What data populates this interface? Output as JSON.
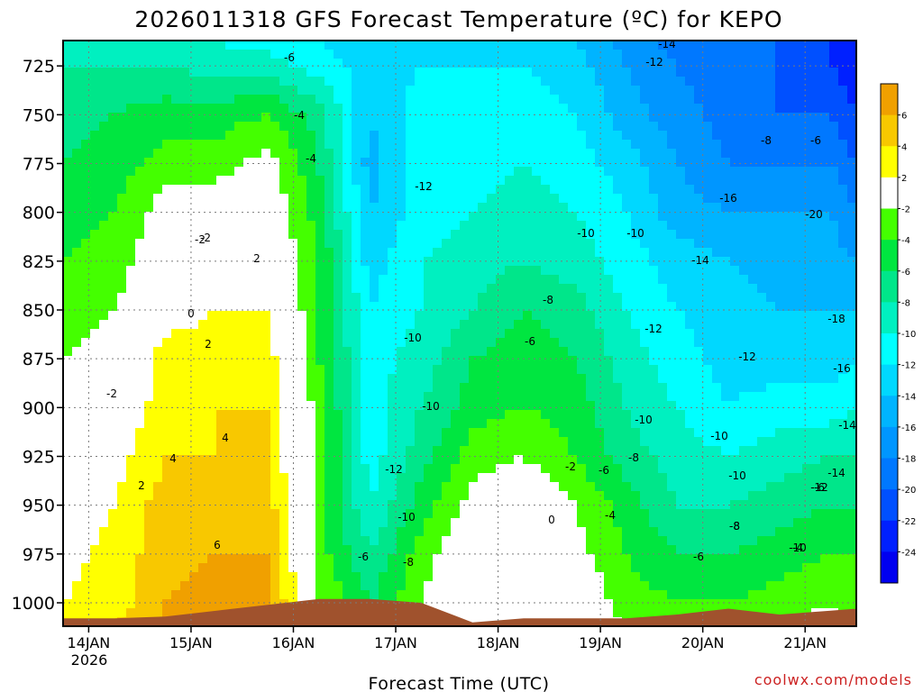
{
  "chart_data": {
    "type": "heatmap",
    "title": "2026011318 GFS Forecast Temperature (ºC) for KEPO",
    "xlabel": "Forecast Time (UTC)",
    "ylabel": "",
    "watermark": "coolwx.com/models",
    "x_axis": {
      "ticks": [
        "14JAN",
        "15JAN",
        "16JAN",
        "17JAN",
        "18JAN",
        "19JAN",
        "20JAN",
        "21JAN"
      ],
      "year_label": "2026",
      "range": [
        "2026-01-13 18Z",
        "2026-01-21 12Z"
      ]
    },
    "y_axis": {
      "units": "hPa",
      "ticks": [
        725,
        750,
        775,
        800,
        825,
        850,
        875,
        900,
        925,
        950,
        975,
        1000
      ],
      "range": [
        1012,
        712
      ],
      "inverted": true
    },
    "grid": true,
    "legend": {
      "placement": "right",
      "labels": [
        "6",
        "4",
        "2",
        "-2",
        "-4",
        "-6",
        "-8",
        "-10",
        "-12",
        "-14",
        "-16",
        "-18",
        "-20",
        "-22",
        "-24"
      ],
      "bins": [
        {
          "range": [
            6,
            8
          ],
          "color": "#f0a000"
        },
        {
          "range": [
            4,
            6
          ],
          "color": "#f8c800"
        },
        {
          "range": [
            2,
            4
          ],
          "color": "#ffff00"
        },
        {
          "range": [
            -2,
            2
          ],
          "color": "#ffffff"
        },
        {
          "range": [
            -4,
            -2
          ],
          "color": "#44ff00"
        },
        {
          "range": [
            -6,
            -4
          ],
          "color": "#00e640"
        },
        {
          "range": [
            -8,
            -6
          ],
          "color": "#00e68a"
        },
        {
          "range": [
            -10,
            -8
          ],
          "color": "#00f0c0"
        },
        {
          "range": [
            -12,
            -10
          ],
          "color": "#00ffff"
        },
        {
          "range": [
            -14,
            -12
          ],
          "color": "#00d8ff"
        },
        {
          "range": [
            -16,
            -14
          ],
          "color": "#00b4ff"
        },
        {
          "range": [
            -18,
            -16
          ],
          "color": "#0096ff"
        },
        {
          "range": [
            -20,
            -18
          ],
          "color": "#0078ff"
        },
        {
          "range": [
            -22,
            -20
          ],
          "color": "#0050ff"
        },
        {
          "range": [
            -24,
            -22
          ],
          "color": "#0020ff"
        },
        {
          "range": [
            -26,
            -24
          ],
          "color": "#0000f0"
        }
      ]
    },
    "field": {
      "time_axis": [
        "2026-01-13 18Z",
        "2026-01-14 06Z",
        "2026-01-14 18Z",
        "2026-01-15 06Z",
        "2026-01-15 18Z",
        "2026-01-16 06Z",
        "2026-01-16 18Z",
        "2026-01-17 06Z",
        "2026-01-17 18Z",
        "2026-01-18 06Z",
        "2026-01-18 18Z",
        "2026-01-19 06Z",
        "2026-01-19 18Z",
        "2026-01-20 06Z",
        "2026-01-20 18Z",
        "2026-01-21 06Z",
        "2026-01-21 12Z"
      ],
      "pressure_axis": [
        712,
        725,
        750,
        775,
        800,
        825,
        850,
        875,
        900,
        925,
        950,
        975,
        1000,
        1012
      ],
      "temperature_c": [
        [
          -9,
          -9,
          -9,
          -10,
          -11,
          -12,
          -13,
          -13,
          -13,
          -13,
          -14,
          -17,
          -19,
          -20,
          -20,
          -22,
          -24
        ],
        [
          -8,
          -8,
          -8,
          -9,
          -9,
          -11,
          -13,
          -12,
          -12,
          -12,
          -13,
          -16,
          -18,
          -20,
          -20,
          -22,
          -24
        ],
        [
          -7,
          -6,
          -5,
          -5,
          -4,
          -7,
          -14,
          -11,
          -11,
          -11,
          -12,
          -15,
          -17,
          -19,
          -20,
          -20,
          -22
        ],
        [
          -6,
          -5,
          -3,
          -3,
          -1,
          -6,
          -15,
          -11,
          -11,
          -10,
          -11,
          -13,
          -16,
          -18,
          -18,
          -18,
          -20
        ],
        [
          -5,
          -4,
          -1,
          0,
          0,
          -5,
          -14,
          -11,
          -10,
          -9,
          -10,
          -12,
          -15,
          -16,
          -16,
          -16,
          -18
        ],
        [
          -4,
          -3,
          0,
          1,
          1,
          -4,
          -13,
          -10,
          -9,
          -8,
          -9,
          -11,
          -13,
          -14,
          -15,
          -15,
          -16
        ],
        [
          -3,
          -2,
          1,
          2,
          2,
          -4,
          -12,
          -10,
          -8,
          -6,
          -7,
          -10,
          -12,
          -13,
          -14,
          -14,
          -14
        ],
        [
          -2,
          -1,
          3,
          3,
          3,
          -4,
          -11,
          -9,
          -6,
          -5,
          -6,
          -9,
          -11,
          -13,
          -13,
          -13,
          -12
        ],
        [
          -1,
          0,
          3,
          4,
          4,
          -3,
          -11,
          -8,
          -5,
          -4,
          -5,
          -8,
          -10,
          -12,
          -11,
          -11,
          -10
        ],
        [
          -1,
          1,
          4,
          4,
          4,
          -3,
          -11,
          -7,
          -3,
          -2,
          -4,
          -7,
          -9,
          -10,
          -9,
          -8,
          -8
        ],
        [
          0,
          2,
          5,
          5,
          5,
          -3,
          -10,
          -5,
          -1,
          0,
          -2,
          -5,
          -8,
          -8,
          -7,
          -6,
          -6
        ],
        [
          1,
          3,
          5,
          6,
          6,
          -3,
          -8,
          -3,
          0,
          1,
          -1,
          -4,
          -6,
          -6,
          -5,
          -4,
          -4
        ],
        [
          2,
          3,
          6,
          7,
          7,
          -2,
          -6,
          -2,
          1,
          2,
          0,
          -3,
          -4,
          -4,
          -3,
          -2,
          -3
        ],
        [
          2,
          4,
          6,
          7,
          7,
          -2,
          -5,
          -1,
          1,
          2,
          1,
          -2,
          -3,
          -3,
          -2,
          -1,
          -2
        ]
      ]
    },
    "contour_labels": [
      "-2",
      "-2",
      "-2",
      "0",
      "2",
      "2",
      "2",
      "4",
      "4",
      "6",
      "-6",
      "-4",
      "-4",
      "-6",
      "-8",
      "-10",
      "-12",
      "-10",
      "-10",
      "-12",
      "-10",
      "-8",
      "-6",
      "-2",
      "0",
      "-10",
      "-10",
      "-8",
      "-6",
      "-4",
      "-12",
      "-10",
      "-8",
      "-6",
      "-12",
      "-14",
      "-16",
      "-14",
      "-12",
      "-10",
      "-8",
      "-6",
      "-20",
      "-18",
      "-16",
      "-14",
      "-14",
      "-12",
      "-10",
      "-8",
      "-6",
      "-4"
    ],
    "terrain": {
      "label": "",
      "color": "#a0522d",
      "surface_pressure_hpa": [
        1008,
        1008,
        1007,
        1004,
        1001,
        998,
        998,
        1000,
        1010,
        1008,
        1008,
        1008,
        1006,
        1003,
        1006,
        1004,
        1003
      ]
    }
  }
}
